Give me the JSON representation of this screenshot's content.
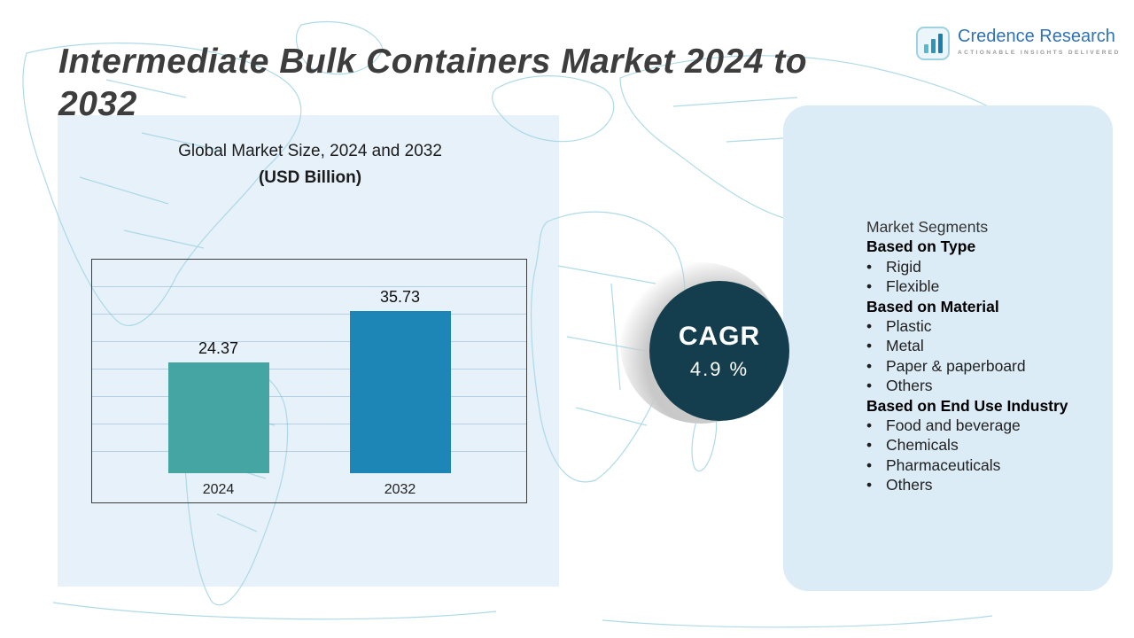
{
  "title": "Intermediate Bulk Containers Market 2024 to 2032",
  "logo": {
    "name": "Credence Research",
    "tagline": "ACTIONABLE INSIGHTS DELIVERED"
  },
  "chart_header": {
    "line1": "Global Market Size, 2024 and 2032",
    "line2": "(USD Billion)"
  },
  "cagr": {
    "label": "CAGR",
    "value": "4.9 %"
  },
  "segments": {
    "title": "Market Segments",
    "bullet_char": "•",
    "sections": [
      {
        "heading": "Based on Type",
        "items": [
          "Rigid",
          "Flexible"
        ]
      },
      {
        "heading": "Based on Material",
        "items": [
          "Plastic",
          "Metal",
          "Paper & paperboard",
          "Others"
        ]
      },
      {
        "heading": "Based on End Use Industry",
        "items": [
          "Food and beverage",
          "Chemicals",
          "Pharmaceuticals",
          "Others"
        ]
      }
    ]
  },
  "chart_data": {
    "type": "bar",
    "title": "Global Market Size, 2024 and 2032",
    "subtitle": "(USD Billion)",
    "categories": [
      "2024",
      "2032"
    ],
    "values": [
      24.37,
      35.73
    ],
    "value_labels": [
      "24.37",
      "35.73"
    ],
    "series_colors": [
      "#45a5a2",
      "#1e86b7"
    ],
    "xlabel": "",
    "ylabel": "USD Billion",
    "ylim": [
      0,
      40
    ],
    "grid": true,
    "legend": "none"
  },
  "colors": {
    "accent_teal": "#45a5a2",
    "accent_blue": "#1e86b7",
    "cagr_circle": "#143e4d",
    "panel_light_blue": "#e7f1f9",
    "segments_panel": "#dbecf7",
    "map_line": "#a6d7e6"
  }
}
